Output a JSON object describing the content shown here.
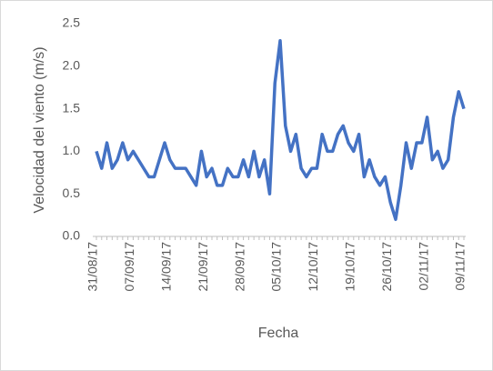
{
  "chart_data": {
    "type": "line",
    "y_label": "Velocidad del viento (m/s)",
    "x_label": "Fecha",
    "categories": [
      "31/08/17",
      null,
      null,
      null,
      null,
      null,
      null,
      "07/09/17",
      null,
      null,
      null,
      null,
      null,
      null,
      "14/09/17",
      null,
      null,
      null,
      null,
      null,
      null,
      "21/09/17",
      null,
      null,
      null,
      null,
      null,
      null,
      "28/09/17",
      null,
      null,
      null,
      null,
      null,
      null,
      "05/10/17",
      null,
      null,
      null,
      null,
      null,
      null,
      "12/10/17",
      null,
      null,
      null,
      null,
      null,
      null,
      "19/10/17",
      null,
      null,
      null,
      null,
      null,
      null,
      "26/10/17",
      null,
      null,
      null,
      null,
      null,
      null,
      "02/11/17",
      null,
      null,
      null,
      null,
      null,
      null,
      "09/11/17"
    ],
    "series": [
      {
        "name": "Velocidad",
        "color": "#4472c4",
        "values": [
          1.0,
          0.8,
          1.1,
          0.8,
          0.9,
          1.1,
          0.9,
          1.0,
          0.9,
          0.8,
          0.7,
          0.7,
          0.9,
          1.1,
          0.9,
          0.8,
          0.8,
          0.8,
          0.7,
          0.6,
          1.0,
          0.7,
          0.8,
          0.6,
          0.6,
          0.8,
          0.7,
          0.7,
          0.9,
          0.7,
          1.0,
          0.7,
          0.9,
          0.5,
          1.8,
          2.3,
          1.3,
          1.0,
          1.2,
          0.8,
          0.7,
          0.8,
          0.8,
          1.2,
          1.0,
          1.0,
          1.2,
          1.3,
          1.1,
          1.0,
          1.2,
          0.7,
          0.9,
          0.7,
          0.6,
          0.7,
          0.4,
          0.2,
          0.6,
          1.1,
          0.8,
          1.1,
          1.1,
          1.4,
          0.9,
          1.0,
          0.8,
          0.9,
          1.4,
          1.7,
          1.5
        ]
      }
    ],
    "ylim": [
      0,
      2.5
    ],
    "yticks": [
      {
        "value": 0,
        "label": "0.0"
      },
      0.5,
      {
        "value": 1,
        "label": "1.0"
      },
      1.5,
      {
        "value": 2,
        "label": "2.0"
      },
      2.5
    ],
    "grid": false
  }
}
